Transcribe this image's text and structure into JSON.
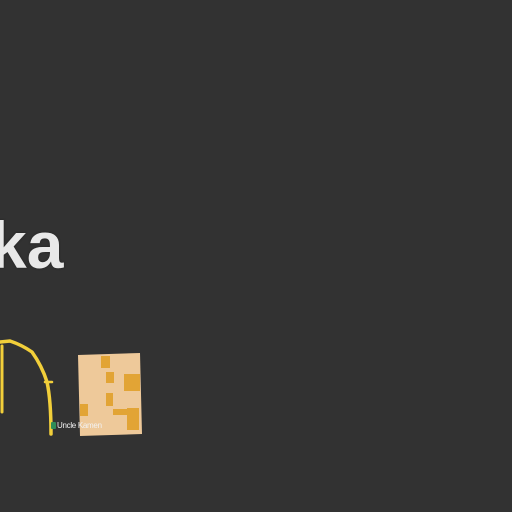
{
  "map": {
    "background_color": "#323232",
    "road_color": "#f2cf3a",
    "area_color": "#eec99a",
    "building_color": "#e2a435",
    "place_label": "ka",
    "poi": {
      "icon": "poi-marker-icon",
      "label": "Uncle Kamen"
    }
  }
}
